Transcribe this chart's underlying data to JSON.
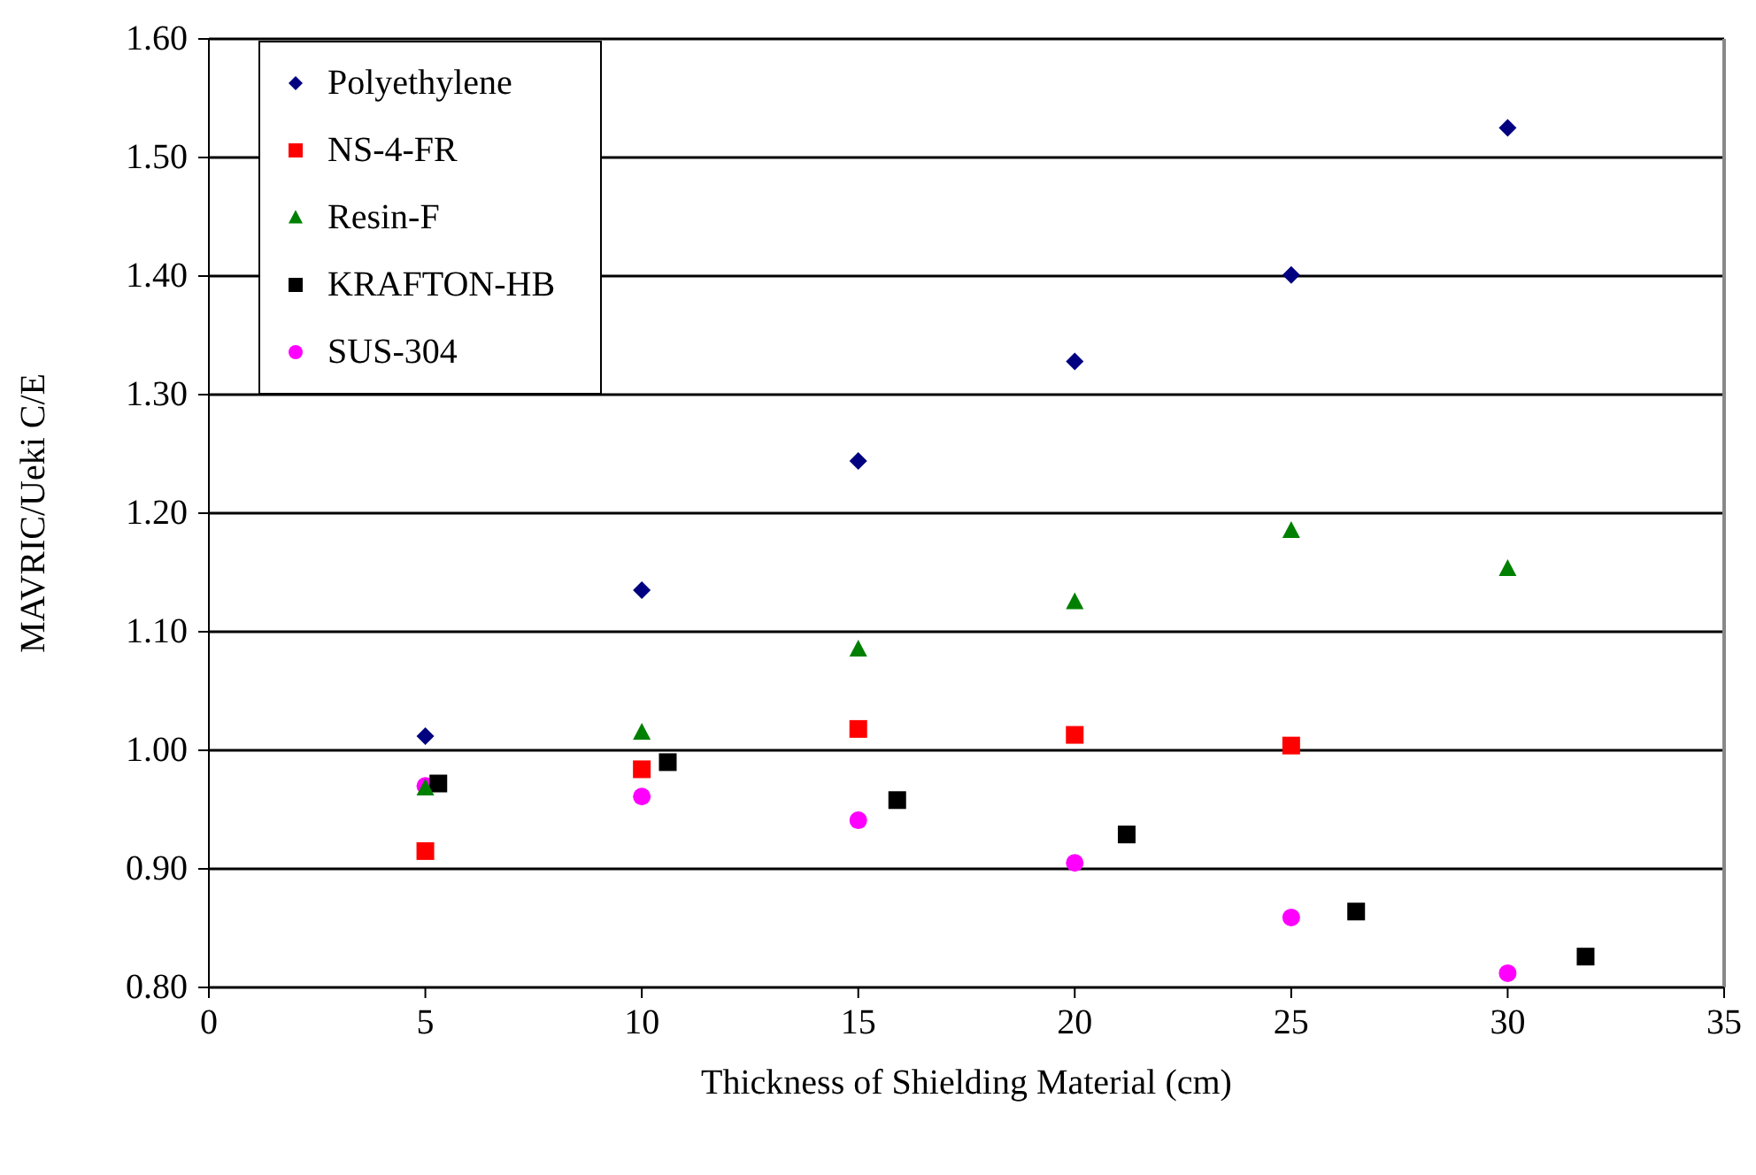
{
  "chart_data": {
    "type": "scatter",
    "xlabel": "Thickness of Shielding Material (cm)",
    "ylabel": "MAVRIC/Ueki C/E",
    "xlim": [
      0,
      35
    ],
    "xticks": [
      0,
      5,
      10,
      15,
      20,
      25,
      30,
      35
    ],
    "ylim": [
      0.8,
      1.6
    ],
    "yticks": [
      {
        "value": 0.8,
        "label": "0.80"
      },
      {
        "value": 0.9,
        "label": "0.90"
      },
      {
        "value": 1.0,
        "label": "1.00"
      },
      {
        "value": 1.1,
        "label": "1.10"
      },
      {
        "value": 1.2,
        "label": "1.20"
      },
      {
        "value": 1.3,
        "label": "1.30"
      },
      {
        "value": 1.4,
        "label": "1.40"
      },
      {
        "value": 1.5,
        "label": "1.50"
      },
      {
        "value": 1.6,
        "label": "1.60"
      }
    ],
    "grid": "y",
    "legend": "top left",
    "series": [
      {
        "name": "Polyethylene",
        "color": "#000080",
        "marker": "diamond",
        "x": [
          5,
          10,
          15,
          20,
          25,
          30
        ],
        "values": [
          1.012,
          1.135,
          1.244,
          1.328,
          1.401,
          1.525
        ]
      },
      {
        "name": "NS-4-FR",
        "color": "#ff0000",
        "marker": "square",
        "x": [
          5,
          10,
          15,
          20,
          25
        ],
        "values": [
          0.915,
          0.984,
          1.018,
          1.013,
          1.004
        ]
      },
      {
        "name": "Resin-F",
        "color": "#008000",
        "marker": "triangle",
        "x": [
          5,
          10,
          15,
          20,
          25,
          30
        ],
        "values": [
          0.968,
          1.015,
          1.085,
          1.125,
          1.185,
          1.153
        ]
      },
      {
        "name": "KRAFTON-HB",
        "color": "#000000",
        "marker": "square",
        "x": [
          5.3,
          10.6,
          15.9,
          21.2,
          26.5,
          31.8
        ],
        "values": [
          0.972,
          0.99,
          0.958,
          0.929,
          0.864,
          0.826
        ]
      },
      {
        "name": "SUS-304",
        "color": "#ff00ff",
        "marker": "circle",
        "x": [
          5,
          10,
          15,
          20,
          25,
          30
        ],
        "values": [
          0.97,
          0.961,
          0.941,
          0.905,
          0.859,
          0.812
        ]
      }
    ]
  }
}
